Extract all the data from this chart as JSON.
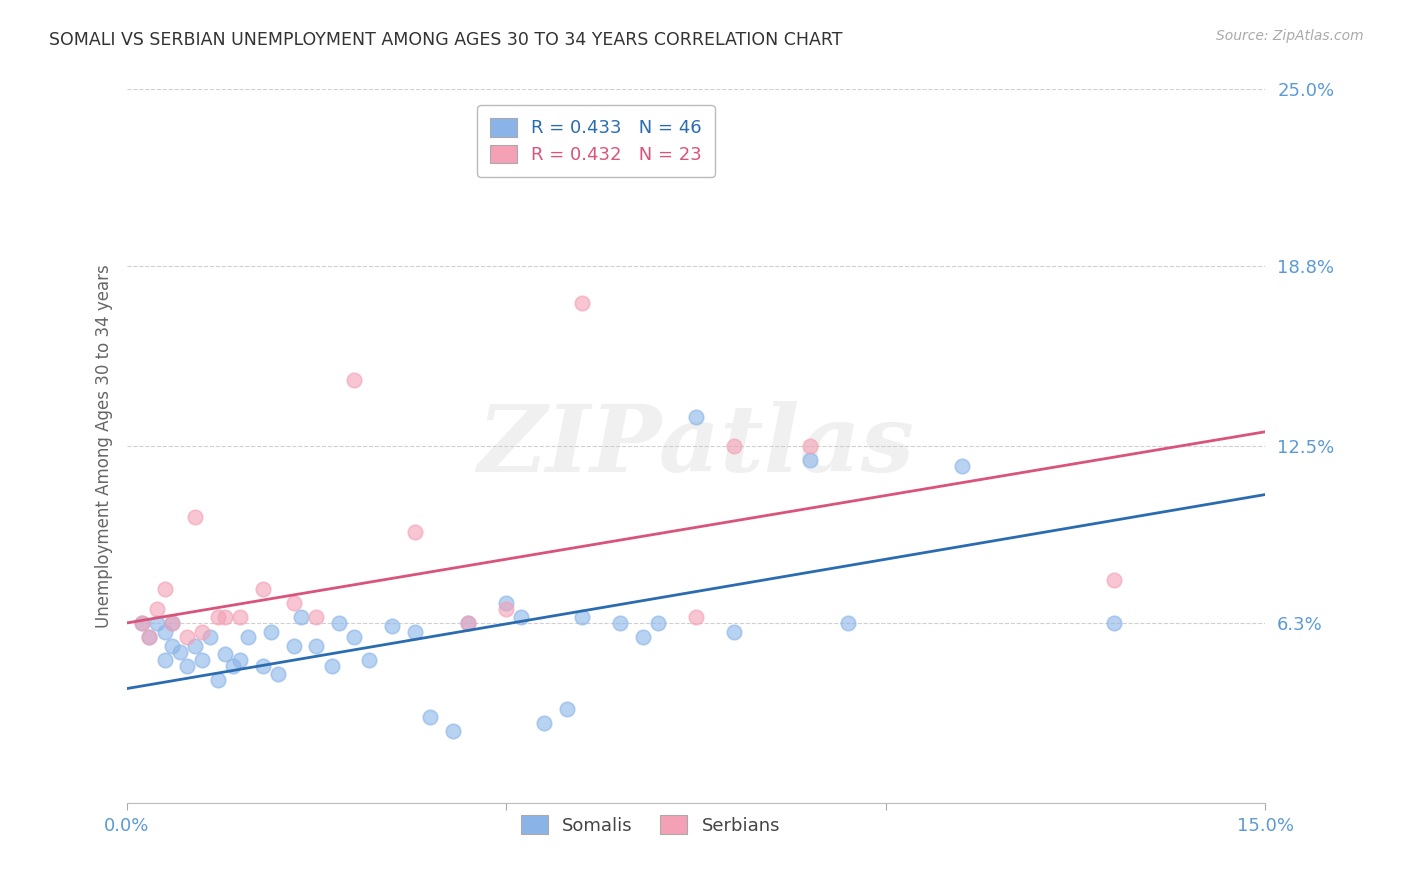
{
  "title": "SOMALI VS SERBIAN UNEMPLOYMENT AMONG AGES 30 TO 34 YEARS CORRELATION CHART",
  "source": "Source: ZipAtlas.com",
  "ylabel": "Unemployment Among Ages 30 to 34 years",
  "xlim": [
    0.0,
    0.15
  ],
  "ylim": [
    0.0,
    0.25
  ],
  "xtick_positions": [
    0.0,
    0.05,
    0.1,
    0.15
  ],
  "xticklabels": [
    "0.0%",
    "",
    "",
    "15.0%"
  ],
  "ytick_positions": [
    0.0,
    0.063,
    0.125,
    0.188,
    0.25
  ],
  "ytick_labels": [
    "",
    "6.3%",
    "12.5%",
    "18.8%",
    "25.0%"
  ],
  "background_color": "#ffffff",
  "grid_color": "#d0d0d0",
  "somali_color": "#8ab4e8",
  "serbian_color": "#f4a0b5",
  "somali_line_color": "#2b6cb0",
  "serbian_line_color": "#d9547a",
  "axis_tick_color": "#5b9bd5",
  "somali_R": 0.433,
  "somali_N": 46,
  "serbian_R": 0.432,
  "serbian_N": 23,
  "somali_line_start_y": 0.04,
  "somali_line_end_y": 0.108,
  "serbian_line_start_y": 0.063,
  "serbian_line_end_y": 0.13,
  "somali_scatter_x": [
    0.002,
    0.003,
    0.004,
    0.005,
    0.005,
    0.006,
    0.006,
    0.007,
    0.008,
    0.009,
    0.01,
    0.011,
    0.012,
    0.013,
    0.014,
    0.015,
    0.016,
    0.018,
    0.019,
    0.02,
    0.022,
    0.023,
    0.025,
    0.027,
    0.028,
    0.03,
    0.032,
    0.035,
    0.038,
    0.04,
    0.043,
    0.045,
    0.05,
    0.052,
    0.055,
    0.058,
    0.06,
    0.065,
    0.068,
    0.07,
    0.075,
    0.08,
    0.09,
    0.095,
    0.11,
    0.13
  ],
  "somali_scatter_y": [
    0.063,
    0.058,
    0.063,
    0.05,
    0.06,
    0.055,
    0.063,
    0.053,
    0.048,
    0.055,
    0.05,
    0.058,
    0.043,
    0.052,
    0.048,
    0.05,
    0.058,
    0.048,
    0.06,
    0.045,
    0.055,
    0.065,
    0.055,
    0.048,
    0.063,
    0.058,
    0.05,
    0.062,
    0.06,
    0.03,
    0.025,
    0.063,
    0.07,
    0.065,
    0.028,
    0.033,
    0.065,
    0.063,
    0.058,
    0.063,
    0.135,
    0.06,
    0.12,
    0.063,
    0.118,
    0.063
  ],
  "serbian_scatter_x": [
    0.002,
    0.003,
    0.004,
    0.005,
    0.006,
    0.008,
    0.009,
    0.01,
    0.012,
    0.013,
    0.015,
    0.018,
    0.022,
    0.025,
    0.03,
    0.038,
    0.045,
    0.05,
    0.06,
    0.075,
    0.08,
    0.09,
    0.13
  ],
  "serbian_scatter_y": [
    0.063,
    0.058,
    0.068,
    0.075,
    0.063,
    0.058,
    0.1,
    0.06,
    0.065,
    0.065,
    0.065,
    0.075,
    0.07,
    0.065,
    0.148,
    0.095,
    0.063,
    0.068,
    0.175,
    0.065,
    0.125,
    0.125,
    0.078
  ],
  "watermark_text": "ZIPatlas",
  "legend_box_color": "#ffffff",
  "legend_border_color": "#bbbbbb"
}
